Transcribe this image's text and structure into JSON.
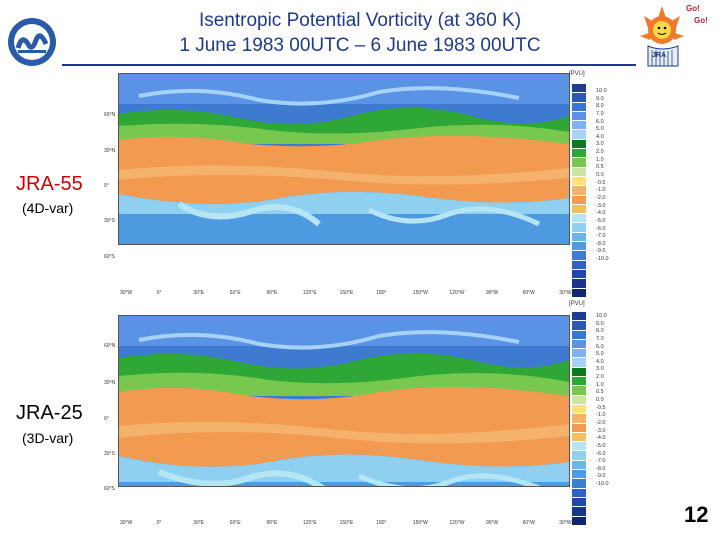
{
  "title": {
    "line1": "Isentropic Potential Vorticity (at 360 K)",
    "line2": "1 June 1983 00UTC – 6 June 1983 00UTC"
  },
  "panels": [
    {
      "name": "JRA-55",
      "method": "(4D-var)",
      "name_color": "#cc0000"
    },
    {
      "name": "JRA-25",
      "method": "(3D-var)",
      "name_color": "#000000"
    }
  ],
  "colorbar": {
    "unit": "[PVU]",
    "labels": [
      "10.0",
      "9.0",
      "8.0",
      "7.0",
      "6.0",
      "5.0",
      "4.0",
      "3.0",
      "2.0",
      "1.0",
      "0.5",
      "0.0",
      "-0.5",
      "-1.0",
      "-2.0",
      "-3.0",
      "-4.0",
      "-5.0",
      "-6.0",
      "-7.0",
      "-8.0",
      "-9.0",
      "-10.0"
    ],
    "colors": [
      "#1e3d8f",
      "#2a58b4",
      "#3c74d3",
      "#5a93e6",
      "#7db3f2",
      "#a6d2f8",
      "#0a7a1e",
      "#2ea737",
      "#78c850",
      "#c9e6a5",
      "#ffe07a",
      "#f5b26b",
      "#f29a4f",
      "#f0c05a",
      "#b6e6f4",
      "#8fd0f0",
      "#6ab6ea",
      "#4d9ae0",
      "#3a7ed4",
      "#2d63c2",
      "#2048a8",
      "#18358c",
      "#0f2670"
    ]
  },
  "map": {
    "lat_labels": [
      "60°N",
      "30°N",
      "0°",
      "30°S",
      "60°S"
    ],
    "lon_labels": [
      "30°W",
      "0°",
      "30°E",
      "60°E",
      "90°E",
      "120°E",
      "150°E",
      "180°",
      "150°W",
      "120°W",
      "90°W",
      "60°W",
      "30°W"
    ]
  },
  "page_number": "12",
  "icons": {
    "logo": "jma-logo-icon",
    "mascot": "jra-mascot-icon",
    "mascot_text": [
      "Go!",
      "Go!",
      "JRA"
    ]
  }
}
